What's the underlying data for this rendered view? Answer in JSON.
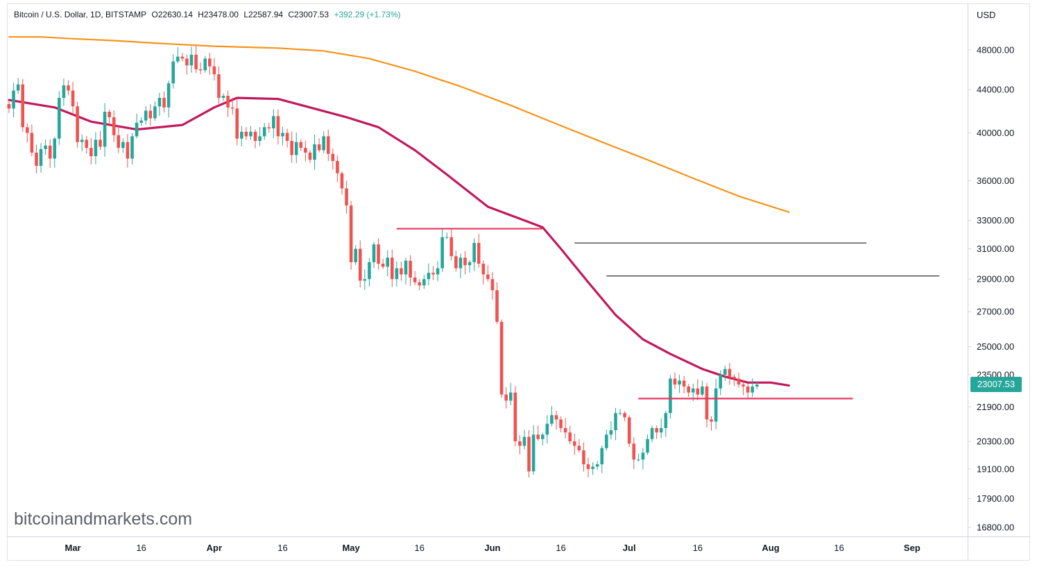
{
  "header": {
    "symbol": "Bitcoin / U.S. Dollar, 1D, BITSTAMP",
    "open": "O22630.14",
    "high": "H23478.00",
    "low": "L22587.94",
    "close": "C23007.53",
    "change": "+392.29 (+1.73%)"
  },
  "watermark": "bitcoinandmarkets.com",
  "currency_label": "USD",
  "last_price_label": "23007.53",
  "colors": {
    "up": "#26a69a",
    "down": "#ef5350",
    "ma_fast": "#c2185b",
    "ma_slow": "#f7931a",
    "support_line": "#e5365f",
    "grid_line": "#000000",
    "axis": "#131722"
  },
  "chart_data": {
    "type": "candlestick",
    "log_scale": true,
    "x_range": [
      "2022-02-15",
      "2022-09-06"
    ],
    "y_ticks": [
      "48000.00",
      "44000.00",
      "40000.00",
      "36000.00",
      "33000.00",
      "31000.00",
      "29000.00",
      "27000.00",
      "25000.00",
      "23500.00",
      "21900.00",
      "20300.00",
      "19100.00",
      "17900.00",
      "16800.00"
    ],
    "x_tick_labels": [
      {
        "date": "2022-03-01",
        "label": "Mar"
      },
      {
        "date": "2022-03-16",
        "label": "16"
      },
      {
        "date": "2022-04-01",
        "label": "Apr"
      },
      {
        "date": "2022-04-16",
        "label": "16"
      },
      {
        "date": "2022-05-01",
        "label": "May"
      },
      {
        "date": "2022-05-16",
        "label": "16"
      },
      {
        "date": "2022-06-01",
        "label": "Jun"
      },
      {
        "date": "2022-06-16",
        "label": "16"
      },
      {
        "date": "2022-07-01",
        "label": "Jul"
      },
      {
        "date": "2022-07-16",
        "label": "16"
      },
      {
        "date": "2022-08-01",
        "label": "Aug"
      },
      {
        "date": "2022-08-16",
        "label": "16"
      },
      {
        "date": "2022-09-01",
        "label": "Sep"
      }
    ],
    "start_date": "2022-02-15",
    "closes": [
      42200,
      43900,
      44500,
      40500,
      40000,
      38300,
      37200,
      38600,
      38900,
      37800,
      39500,
      43200,
      44400,
      43900,
      42400,
      39200,
      39400,
      38700,
      38000,
      39400,
      38800,
      41900,
      41400,
      39800,
      38700,
      39200,
      37800,
      39700,
      40900,
      41100,
      42000,
      41300,
      42400,
      43200,
      42300,
      44600,
      46800,
      47300,
      47100,
      46400,
      47500,
      46000,
      45900,
      47100,
      46300,
      45500,
      43200,
      43400,
      42300,
      42200,
      39500,
      40100,
      39700,
      40100,
      39300,
      39700,
      40500,
      40400,
      41500,
      39700,
      40000,
      39300,
      38100,
      39200,
      38700,
      38300,
      37700,
      39000,
      38500,
      39700,
      38200,
      37600,
      36600,
      35400,
      34100,
      30100,
      31000,
      28900,
      29000,
      30100,
      31300,
      30000,
      29800,
      30400,
      29000,
      29700,
      29300,
      30200,
      29100,
      28800,
      28600,
      29000,
      29400,
      29300,
      29700,
      31800,
      31800,
      30500,
      29700,
      30400,
      29900,
      30100,
      31400,
      30000,
      29300,
      29000,
      28300,
      26400,
      22500,
      22200,
      22600,
      20300,
      20100,
      20500,
      19000,
      20600,
      20400,
      20600,
      21100,
      21500,
      21300,
      20900,
      20700,
      20300,
      20100,
      19900,
      19300,
      19100,
      19200,
      19300,
      20000,
      20600,
      20800,
      21600,
      21600,
      21400,
      20200,
      19500,
      19500,
      19800,
      20400,
      20900,
      20700,
      20900,
      21600,
      23300,
      23000,
      23200,
      22900,
      22600,
      22800,
      22500,
      22900,
      21300,
      21200,
      22800,
      23500,
      23800,
      23400,
      23300,
      23000,
      22900,
      22600,
      22900,
      23000
    ],
    "ma_fast": {
      "name": "",
      "points": [
        [
          "2022-02-15",
          43000
        ],
        [
          "2022-02-25",
          42300
        ],
        [
          "2022-03-05",
          41000
        ],
        [
          "2022-03-15",
          40300
        ],
        [
          "2022-03-25",
          40700
        ],
        [
          "2022-04-01",
          42300
        ],
        [
          "2022-04-06",
          43200
        ],
        [
          "2022-04-15",
          43100
        ],
        [
          "2022-04-22",
          42300
        ],
        [
          "2022-04-30",
          41400
        ],
        [
          "2022-05-07",
          40500
        ],
        [
          "2022-05-15",
          38500
        ],
        [
          "2022-05-22",
          36500
        ],
        [
          "2022-05-31",
          34000
        ],
        [
          "2022-06-08",
          33000
        ],
        [
          "2022-06-12",
          32500
        ],
        [
          "2022-06-16",
          31000
        ],
        [
          "2022-06-22",
          28800
        ],
        [
          "2022-06-28",
          26800
        ],
        [
          "2022-07-04",
          25400
        ],
        [
          "2022-07-10",
          24600
        ],
        [
          "2022-07-17",
          23800
        ],
        [
          "2022-07-22",
          23400
        ],
        [
          "2022-07-27",
          23100
        ],
        [
          "2022-08-01",
          23100
        ],
        [
          "2022-08-05",
          22950
        ]
      ]
    },
    "ma_slow": {
      "name": "",
      "points": [
        [
          "2022-02-15",
          49400
        ],
        [
          "2022-02-22",
          49400
        ],
        [
          "2022-03-01",
          49200
        ],
        [
          "2022-03-10",
          49000
        ],
        [
          "2022-03-20",
          48700
        ],
        [
          "2022-04-01",
          48400
        ],
        [
          "2022-04-15",
          48200
        ],
        [
          "2022-04-25",
          47900
        ],
        [
          "2022-05-05",
          47100
        ],
        [
          "2022-05-15",
          45800
        ],
        [
          "2022-05-25",
          44300
        ],
        [
          "2022-06-05",
          42500
        ],
        [
          "2022-06-15",
          40800
        ],
        [
          "2022-06-25",
          39200
        ],
        [
          "2022-07-05",
          37700
        ],
        [
          "2022-07-15",
          36200
        ],
        [
          "2022-07-25",
          34800
        ],
        [
          "2022-08-05",
          33600
        ]
      ]
    },
    "annotation_lines": [
      {
        "start": "2022-05-11",
        "end": "2022-06-12",
        "value": 32400,
        "color": "support_line"
      },
      {
        "start": "2022-06-19",
        "end": "2022-08-22",
        "value": 31400,
        "color": "grid_line"
      },
      {
        "start": "2022-06-26",
        "end": "2022-09-07",
        "value": 29200,
        "color": "grid_line"
      },
      {
        "start": "2022-07-03",
        "end": "2022-08-19",
        "value": 22300,
        "color": "support_line"
      }
    ]
  }
}
